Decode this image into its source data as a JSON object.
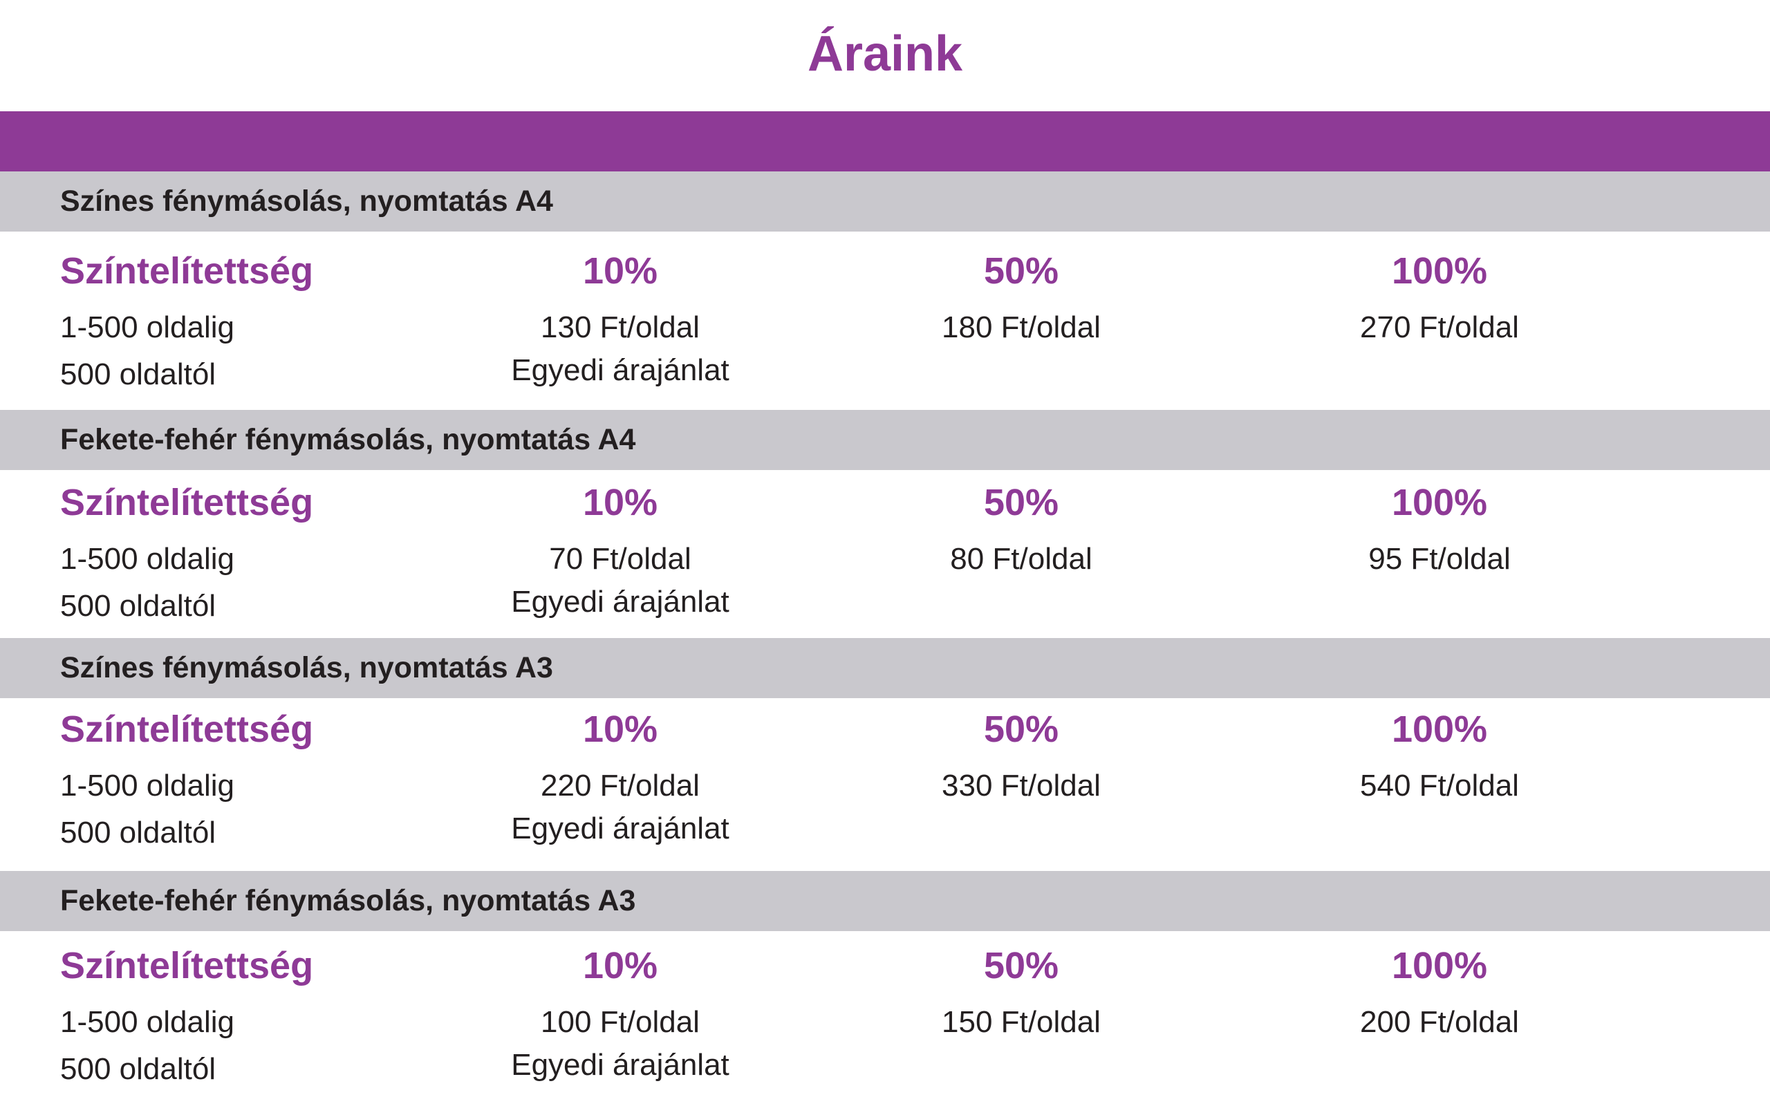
{
  "title": "Áraink",
  "colors": {
    "accent": "#8e3a96",
    "header_gray": "#c9c8cd",
    "text": "#231f20"
  },
  "sections": [
    {
      "heading": "Színes fénymásolás, nyomtatás A4",
      "column_label": "Színtelítettség",
      "coverage": [
        "10%",
        "50%",
        "100%"
      ],
      "row1_label": "1-500 oldalig",
      "row1_prices": [
        "130 Ft/oldal",
        "180 Ft/oldal",
        "270 Ft/oldal"
      ],
      "row2_label": "500 oldaltól",
      "row2_price": "Egyedi árajánlat"
    },
    {
      "heading": "Fekete-fehér fénymásolás, nyomtatás A4",
      "column_label": "Színtelítettség",
      "coverage": [
        "10%",
        "50%",
        "100%"
      ],
      "row1_label": "1-500 oldalig",
      "row1_prices": [
        "70 Ft/oldal",
        "80 Ft/oldal",
        "95 Ft/oldal"
      ],
      "row2_label": "500 oldaltól",
      "row2_price": "Egyedi árajánlat"
    },
    {
      "heading": "Színes fénymásolás, nyomtatás A3",
      "column_label": "Színtelítettség",
      "coverage": [
        "10%",
        "50%",
        "100%"
      ],
      "row1_label": "1-500 oldalig",
      "row1_prices": [
        "220 Ft/oldal",
        "330 Ft/oldal",
        "540 Ft/oldal"
      ],
      "row2_label": "500 oldaltól",
      "row2_price": "Egyedi árajánlat"
    },
    {
      "heading": "Fekete-fehér fénymásolás, nyomtatás A3",
      "column_label": "Színtelítettség",
      "coverage": [
        "10%",
        "50%",
        "100%"
      ],
      "row1_label": "1-500 oldalig",
      "row1_prices": [
        "100 Ft/oldal",
        "150 Ft/oldal",
        "200 Ft/oldal"
      ],
      "row2_label": "500 oldaltól",
      "row2_price": "Egyedi árajánlat"
    }
  ]
}
